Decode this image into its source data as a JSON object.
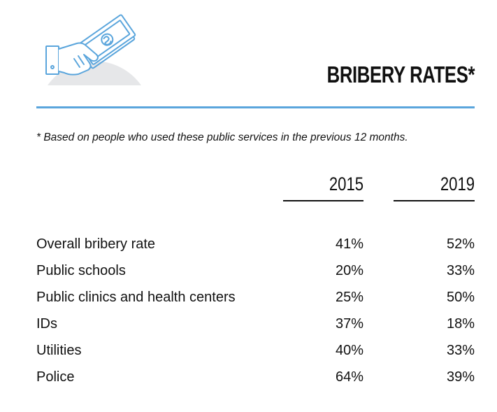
{
  "header": {
    "title": "BRIBERY RATES*",
    "footnote": "* Based on people who used these public services in the previous 12 months.",
    "icon": "hand-giving-money-icon"
  },
  "colors": {
    "accent": "#5aa5dc",
    "icon_bg": "#e6e7e9",
    "text": "#111111"
  },
  "chart_data": {
    "type": "table",
    "title": "BRIBERY RATES*",
    "note": "* Based on people who used these public services in the previous 12 months.",
    "columns": [
      "2015",
      "2019"
    ],
    "rows": [
      {
        "label": "Overall bribery rate",
        "v2015": "41%",
        "v2019": "52%"
      },
      {
        "label": "Public schools",
        "v2015": "20%",
        "v2019": "33%"
      },
      {
        "label": "Public clinics and health centers",
        "v2015": "25%",
        "v2019": "50%"
      },
      {
        "label": "IDs",
        "v2015": "37%",
        "v2019": "18%"
      },
      {
        "label": "Utilities",
        "v2015": "40%",
        "v2019": "33%"
      },
      {
        "label": "Police",
        "v2015": "64%",
        "v2019": "39%"
      }
    ],
    "values_2015": [
      41,
      20,
      25,
      37,
      40,
      64
    ],
    "values_2019": [
      52,
      33,
      50,
      18,
      33,
      39
    ],
    "unit": "%"
  }
}
